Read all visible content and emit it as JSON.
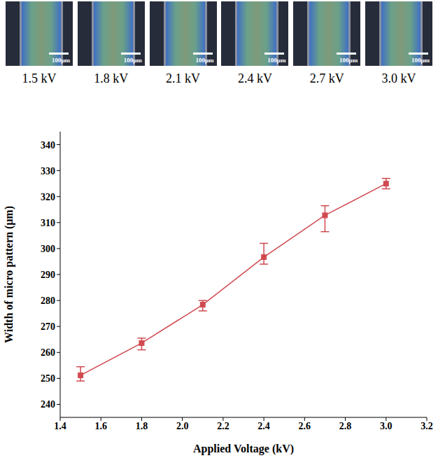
{
  "panels": {
    "labels": [
      "1.5 kV",
      "1.8 kV",
      "2.1 kV",
      "2.4 kV",
      "2.7 kV",
      "3.0 kV"
    ],
    "scale_bar": "100μm"
  },
  "chart_data": {
    "type": "line",
    "x_label": "Applied Voltage (kV)",
    "y_label": "Width of micro pattern (μm)",
    "x": [
      1.5,
      1.8,
      2.1,
      2.4,
      2.7,
      3.0
    ],
    "values": [
      251.2,
      263.6,
      278.4,
      296.7,
      312.8,
      325.0
    ],
    "errors": {
      "minus": [
        2.2,
        2.6,
        2.4,
        2.7,
        6.3,
        2.0
      ],
      "plus": [
        3.3,
        1.9,
        1.6,
        5.3,
        3.7,
        2.0
      ]
    },
    "color": "#d04a50",
    "marker": "square",
    "xlim": [
      1.4,
      3.2
    ],
    "xticks": [
      1.4,
      1.6,
      1.8,
      {
        "value": 2,
        "label": "2.0"
      },
      2.2,
      2.4,
      2.6,
      2.8,
      {
        "value": 3,
        "label": "3.0"
      },
      3.2
    ],
    "ylim": [
      235,
      345
    ],
    "yticks": [
      240,
      250,
      260,
      270,
      280,
      290,
      300,
      310,
      320,
      330,
      340
    ],
    "grid": false
  }
}
